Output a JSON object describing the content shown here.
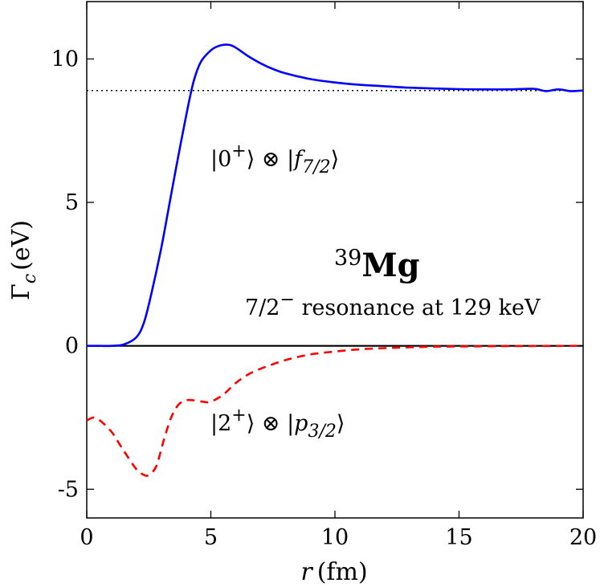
{
  "chart_data": {
    "type": "line",
    "xlabel": {
      "symbol": "r",
      "unit": "(fm)"
    },
    "ylabel": {
      "symbol": "Γ",
      "subscript": "c",
      "unit": "(eV)"
    },
    "xlim": [
      0,
      20
    ],
    "ylim": [
      -6,
      12
    ],
    "xticks": [
      0,
      5,
      10,
      15,
      20
    ],
    "xtick_labels": [
      "0",
      "5",
      "10",
      "15",
      "20"
    ],
    "yticks": [
      -5,
      0,
      5,
      10
    ],
    "ytick_labels": [
      "-5",
      "0",
      "5",
      "10"
    ],
    "reference_lines": [
      {
        "name": "asymptote",
        "y": 8.9,
        "style": "dotted",
        "color": "#000000"
      },
      {
        "name": "zero-line",
        "y": 0,
        "style": "solid",
        "color": "#000000"
      }
    ],
    "series": [
      {
        "name": "f7/2 channel",
        "color": "#0000ff",
        "style": "solid",
        "x": [
          0,
          0.5,
          1.0,
          1.5,
          2.0,
          2.3,
          2.6,
          3.0,
          3.3,
          3.6,
          4.0,
          4.3,
          4.6,
          5.0,
          5.3,
          5.6,
          5.8,
          6.0,
          6.5,
          7.0,
          7.5,
          8.0,
          9.0,
          10.0,
          11.0,
          12.0,
          13.0,
          14.0,
          15.0,
          16.0,
          17.0,
          18.0,
          18.5,
          19.0,
          19.5,
          20.0
        ],
        "values": [
          0,
          0,
          0,
          0.05,
          0.3,
          0.8,
          1.8,
          3.4,
          4.8,
          6.2,
          8.0,
          9.2,
          9.9,
          10.3,
          10.45,
          10.5,
          10.48,
          10.4,
          10.1,
          9.85,
          9.65,
          9.5,
          9.3,
          9.18,
          9.1,
          9.05,
          9.0,
          8.97,
          8.95,
          8.94,
          8.94,
          8.96,
          8.88,
          8.94,
          8.88,
          8.9
        ]
      },
      {
        "name": "p3/2 channel",
        "color": "#ff0000",
        "style": "dashed",
        "x": [
          0,
          0.3,
          0.6,
          1.0,
          1.3,
          1.6,
          2.0,
          2.3,
          2.5,
          2.8,
          3.1,
          3.4,
          3.7,
          4.0,
          4.3,
          4.7,
          5.0,
          5.5,
          6.0,
          6.5,
          7.0,
          8.0,
          9.0,
          10.0,
          11.0,
          12.0,
          13.0,
          14.0,
          15.0,
          17.0,
          20.0
        ],
        "values": [
          -2.6,
          -2.5,
          -2.65,
          -3.0,
          -3.4,
          -3.8,
          -4.3,
          -4.5,
          -4.5,
          -4.2,
          -3.3,
          -2.5,
          -2.05,
          -1.9,
          -1.9,
          -1.95,
          -1.95,
          -1.7,
          -1.3,
          -1.0,
          -0.8,
          -0.5,
          -0.3,
          -0.2,
          -0.12,
          -0.08,
          -0.05,
          -0.03,
          -0.02,
          -0.01,
          0
        ]
      }
    ],
    "annotations": {
      "blue_label": {
        "ket1": "0",
        "ket1_sup": "+",
        "otimes": "⊗",
        "ket2": "f",
        "ket2_sub": "7/2"
      },
      "red_label": {
        "ket1": "2",
        "ket1_sup": "+",
        "otimes": "⊗",
        "ket2": "p",
        "ket2_sub": "3/2"
      },
      "nucleus": {
        "mass": "39",
        "symbol": "Mg"
      },
      "resonance": {
        "spin": "7/2",
        "parity": "−",
        "text": " resonance at 129 keV"
      }
    }
  }
}
